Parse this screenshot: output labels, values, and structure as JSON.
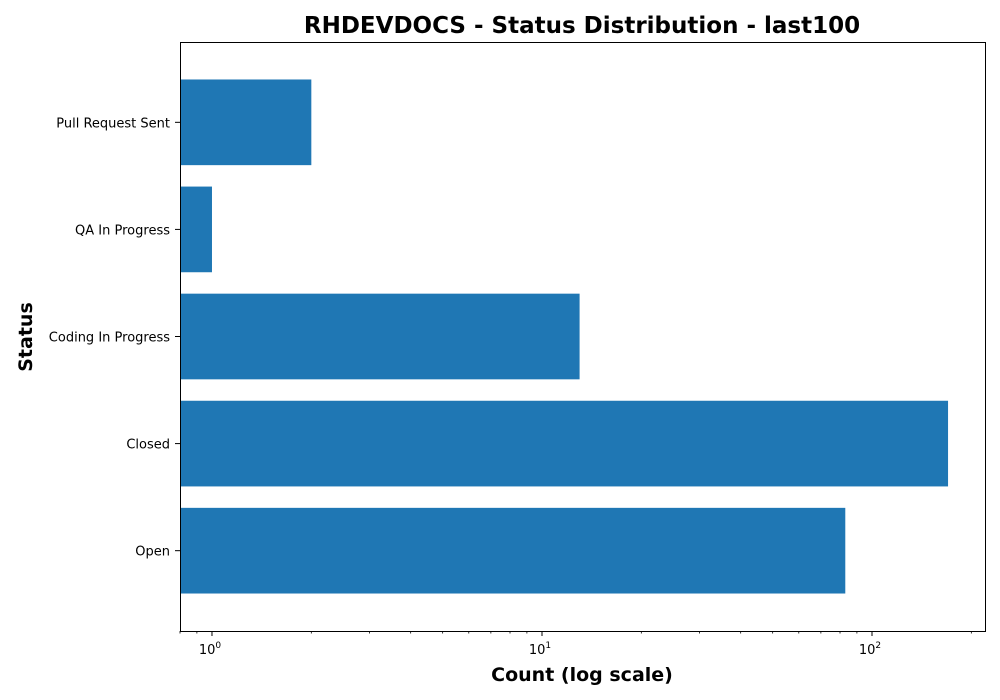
{
  "chart_data": {
    "type": "bar",
    "orientation": "horizontal",
    "title": "RHDEVDOCS - Status Distribution - last100",
    "xlabel": "Count (log scale)",
    "ylabel": "Status",
    "x_scale": "log",
    "xlim": [
      0.8,
      220
    ],
    "x_ticks": [
      {
        "base": "10",
        "exp": "0",
        "value": 1
      },
      {
        "base": "10",
        "exp": "1",
        "value": 10
      },
      {
        "base": "10",
        "exp": "2",
        "value": 100
      }
    ],
    "categories": [
      "Open",
      "Closed",
      "Coding In Progress",
      "QA In Progress",
      "Pull Request Sent"
    ],
    "values": [
      83,
      170,
      13,
      1,
      2
    ],
    "bar_color": "#1f77b4",
    "grid": false,
    "legend": "none"
  }
}
